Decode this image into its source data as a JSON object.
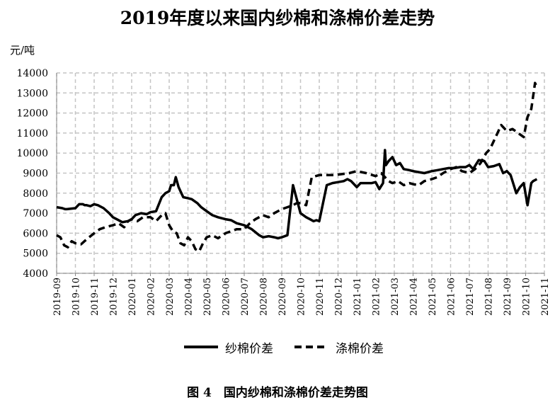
{
  "chart_data": {
    "type": "line",
    "title": "2019年度以来国内纱棉和涤棉价差走势",
    "ylabel": "元/吨",
    "caption": "图 4　国内纱棉和涤棉价差走势图",
    "ylim": [
      4000,
      14000
    ],
    "yticks": [
      4000,
      5000,
      6000,
      7000,
      8000,
      9000,
      10000,
      11000,
      12000,
      13000,
      14000
    ],
    "xticks": [
      "2019-09",
      "2019-10",
      "2019-11",
      "2019-12",
      "2020-01",
      "2020-02",
      "2020-03",
      "2020-04",
      "2020-05",
      "2020-06",
      "2020-07",
      "2020-08",
      "2020-09",
      "2020-10",
      "2020-11",
      "2020-12",
      "2021-01",
      "2021-02",
      "2021-03",
      "2021-04",
      "2021-05",
      "2021-06",
      "2021-07",
      "2021-08",
      "2021-09",
      "2021-10",
      "2021-11"
    ],
    "grid": true,
    "legend_position": "bottom",
    "series": [
      {
        "name": "纱棉价差",
        "style": "solid",
        "color": "#000000",
        "x": [
          0,
          0.3,
          0.45,
          0.55,
          1.0,
          1.2,
          1.4,
          1.5,
          1.6,
          1.8,
          2.0,
          2.2,
          2.5,
          2.8,
          3.0,
          3.2,
          3.5,
          3.8,
          4.0,
          4.2,
          4.5,
          4.8,
          5.0,
          5.3,
          5.6,
          5.8,
          6.0,
          6.1,
          6.25,
          6.35,
          6.5,
          6.6,
          6.75,
          7.0,
          7.2,
          7.5,
          7.7,
          8.0,
          8.3,
          8.6,
          9.0,
          9.3,
          9.6,
          10.0,
          10.4,
          10.8,
          11.0,
          11.3,
          11.6,
          11.8,
          12.0,
          12.3,
          12.6,
          13.0,
          13.3,
          13.5,
          13.7,
          13.85,
          14.0,
          14.2,
          14.4,
          14.7,
          15.0,
          15.3,
          15.5,
          15.7,
          15.9,
          16.0,
          16.2,
          16.5,
          16.8,
          17.0,
          17.2,
          17.4,
          17.5,
          17.55,
          17.7,
          17.9,
          18.1,
          18.3,
          18.5,
          18.8,
          19.0,
          19.3,
          19.6,
          20.0,
          20.3,
          20.6,
          20.9,
          21.2,
          21.5,
          21.8,
          22.0,
          22.2,
          22.5,
          22.8,
          23.0,
          23.3,
          23.6,
          23.8,
          24.0,
          24.2,
          24.5,
          24.7,
          24.9,
          25.1,
          25.3,
          25.4,
          25.6
        ],
        "values": [
          7300,
          7250,
          7200,
          7200,
          7250,
          7450,
          7450,
          7400,
          7400,
          7350,
          7450,
          7400,
          7250,
          7000,
          6800,
          6700,
          6550,
          6600,
          6700,
          6900,
          7000,
          6950,
          7050,
          7100,
          7800,
          8000,
          8100,
          8400,
          8400,
          8800,
          8300,
          8100,
          7800,
          7750,
          7700,
          7500,
          7300,
          7100,
          6900,
          6800,
          6700,
          6650,
          6500,
          6400,
          6200,
          5900,
          5800,
          5850,
          5800,
          5750,
          5800,
          5900,
          8400,
          7000,
          6800,
          6700,
          6600,
          6650,
          6600,
          7500,
          8400,
          8500,
          8550,
          8600,
          8700,
          8600,
          8400,
          8300,
          8500,
          8500,
          8500,
          8550,
          8200,
          8500,
          10150,
          9400,
          9600,
          9800,
          9400,
          9500,
          9200,
          9150,
          9100,
          9050,
          9000,
          9100,
          9150,
          9200,
          9250,
          9250,
          9300,
          9300,
          9400,
          9200,
          9650,
          9600,
          9300,
          9350,
          9450,
          9000,
          9100,
          8900,
          8000,
          8300,
          8500,
          7400,
          8500,
          8600,
          8700
        ]
      },
      {
        "name": "涤棉价差",
        "style": "dashed",
        "color": "#000000",
        "x": [
          0,
          0.2,
          0.4,
          0.6,
          0.8,
          1.0,
          1.3,
          1.6,
          2.0,
          2.3,
          2.6,
          3.0,
          3.3,
          3.6,
          3.8,
          4.0,
          4.3,
          4.6,
          5.0,
          5.3,
          5.6,
          5.8,
          6.0,
          6.2,
          6.4,
          6.6,
          6.8,
          7.0,
          7.2,
          7.4,
          7.6,
          7.8,
          8.0,
          8.3,
          8.6,
          9.0,
          9.3,
          9.6,
          10.0,
          10.3,
          10.6,
          11.0,
          11.3,
          11.6,
          12.0,
          12.3,
          12.6,
          12.8,
          13.0,
          13.3,
          13.6,
          14.0,
          14.4,
          14.8,
          15.2,
          15.6,
          16.0,
          16.5,
          17.0,
          17.3,
          17.5,
          17.7,
          17.9,
          18.2,
          18.5,
          18.8,
          19.0,
          19.3,
          19.6,
          20.0,
          20.3,
          20.6,
          21.0,
          21.3,
          21.6,
          22.0,
          22.3,
          22.6,
          22.9,
          23.1,
          23.3,
          23.5,
          23.7,
          24.0,
          24.3,
          24.6,
          24.9,
          25.1,
          25.3,
          25.5,
          25.6
        ],
        "values": [
          5900,
          5800,
          5400,
          5300,
          5600,
          5500,
          5450,
          5700,
          6000,
          6200,
          6300,
          6400,
          6500,
          6300,
          6600,
          6700,
          6600,
          6800,
          6800,
          6600,
          6900,
          7000,
          6400,
          6100,
          6000,
          5500,
          5400,
          5800,
          5600,
          5200,
          5100,
          5500,
          5800,
          5900,
          5750,
          6000,
          6100,
          6200,
          6200,
          6500,
          6700,
          6900,
          6800,
          7000,
          7200,
          7300,
          7400,
          7500,
          7500,
          7400,
          8800,
          8900,
          8900,
          8900,
          8950,
          9000,
          9100,
          9000,
          8850,
          9000,
          8800,
          8600,
          8500,
          8600,
          8400,
          8500,
          8450,
          8400,
          8600,
          8700,
          8800,
          9000,
          9200,
          9300,
          9100,
          9000,
          9200,
          9500,
          10000,
          10200,
          10600,
          11000,
          11400,
          11100,
          11200,
          11000,
          10800,
          11800,
          12200,
          13500,
          13300
        ]
      }
    ]
  }
}
